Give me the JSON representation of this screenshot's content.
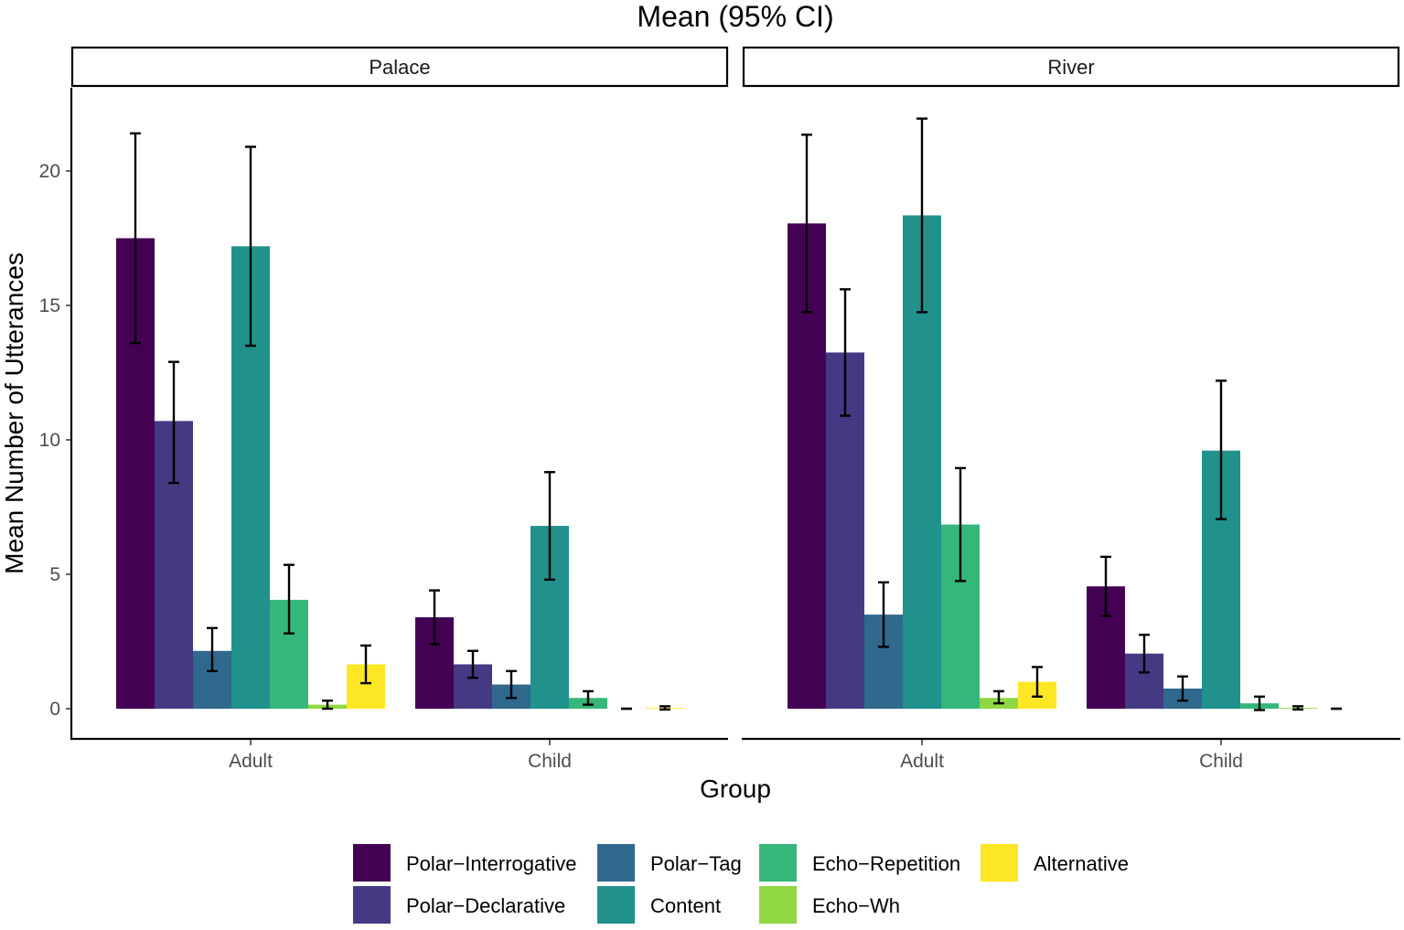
{
  "chart_data": {
    "type": "bar",
    "title": "Mean (95% CI)",
    "xlabel": "Group",
    "ylabel": "Mean Number of Utterances",
    "ylim": [
      -1.1,
      23
    ],
    "yticks": [
      0,
      5,
      10,
      15,
      20
    ],
    "grid": false,
    "legend_position": "bottom",
    "categories": [
      "Adult",
      "Child"
    ],
    "facets": [
      {
        "name": "Palace",
        "series": [
          {
            "name": "Polar−Interrogative",
            "values": [
              17.5,
              3.4
            ],
            "ci_low": [
              13.6,
              2.4
            ],
            "ci_high": [
              21.4,
              4.4
            ]
          },
          {
            "name": "Polar−Declarative",
            "values": [
              10.7,
              1.65
            ],
            "ci_low": [
              8.4,
              1.15
            ],
            "ci_high": [
              12.9,
              2.15
            ]
          },
          {
            "name": "Polar−Tag",
            "values": [
              2.15,
              0.9
            ],
            "ci_low": [
              1.4,
              0.4
            ],
            "ci_high": [
              3.0,
              1.4
            ]
          },
          {
            "name": "Content",
            "values": [
              17.2,
              6.8
            ],
            "ci_low": [
              13.5,
              4.8
            ],
            "ci_high": [
              20.9,
              8.8
            ]
          },
          {
            "name": "Echo−Repetition",
            "values": [
              4.05,
              0.4
            ],
            "ci_low": [
              2.8,
              0.15
            ],
            "ci_high": [
              5.35,
              0.65
            ]
          },
          {
            "name": "Echo−Wh",
            "values": [
              0.15,
              0.0
            ],
            "ci_low": [
              0.0,
              0.0
            ],
            "ci_high": [
              0.3,
              0.0
            ]
          },
          {
            "name": "Alternative",
            "values": [
              1.65,
              0.03
            ],
            "ci_low": [
              0.95,
              -0.03
            ],
            "ci_high": [
              2.35,
              0.09
            ]
          }
        ]
      },
      {
        "name": "River",
        "series": [
          {
            "name": "Polar−Interrogative",
            "values": [
              18.05,
              4.55
            ],
            "ci_low": [
              14.75,
              3.45
            ],
            "ci_high": [
              21.35,
              5.65
            ]
          },
          {
            "name": "Polar−Declarative",
            "values": [
              13.25,
              2.05
            ],
            "ci_low": [
              10.9,
              1.35
            ],
            "ci_high": [
              15.6,
              2.75
            ]
          },
          {
            "name": "Polar−Tag",
            "values": [
              3.5,
              0.75
            ],
            "ci_low": [
              2.3,
              0.3
            ],
            "ci_high": [
              4.7,
              1.2
            ]
          },
          {
            "name": "Content",
            "values": [
              18.35,
              9.6
            ],
            "ci_low": [
              14.75,
              7.05
            ],
            "ci_high": [
              21.95,
              12.2
            ]
          },
          {
            "name": "Echo−Repetition",
            "values": [
              6.85,
              0.2
            ],
            "ci_low": [
              4.75,
              -0.05
            ],
            "ci_high": [
              8.95,
              0.45
            ]
          },
          {
            "name": "Echo−Wh",
            "values": [
              0.4,
              0.03
            ],
            "ci_low": [
              0.2,
              -0.03
            ],
            "ci_high": [
              0.65,
              0.09
            ]
          },
          {
            "name": "Alternative",
            "values": [
              1.0,
              0.0
            ],
            "ci_low": [
              0.45,
              0.0
            ],
            "ci_high": [
              1.55,
              0.0
            ]
          }
        ]
      }
    ],
    "legend": [
      {
        "name": "Polar−Interrogative",
        "color": "#440154"
      },
      {
        "name": "Polar−Declarative",
        "color": "#443983"
      },
      {
        "name": "Polar−Tag",
        "color": "#31688e"
      },
      {
        "name": "Content",
        "color": "#21918c"
      },
      {
        "name": "Echo−Repetition",
        "color": "#35b779"
      },
      {
        "name": "Echo−Wh",
        "color": "#90d743"
      },
      {
        "name": "Alternative",
        "color": "#fde725"
      }
    ]
  }
}
